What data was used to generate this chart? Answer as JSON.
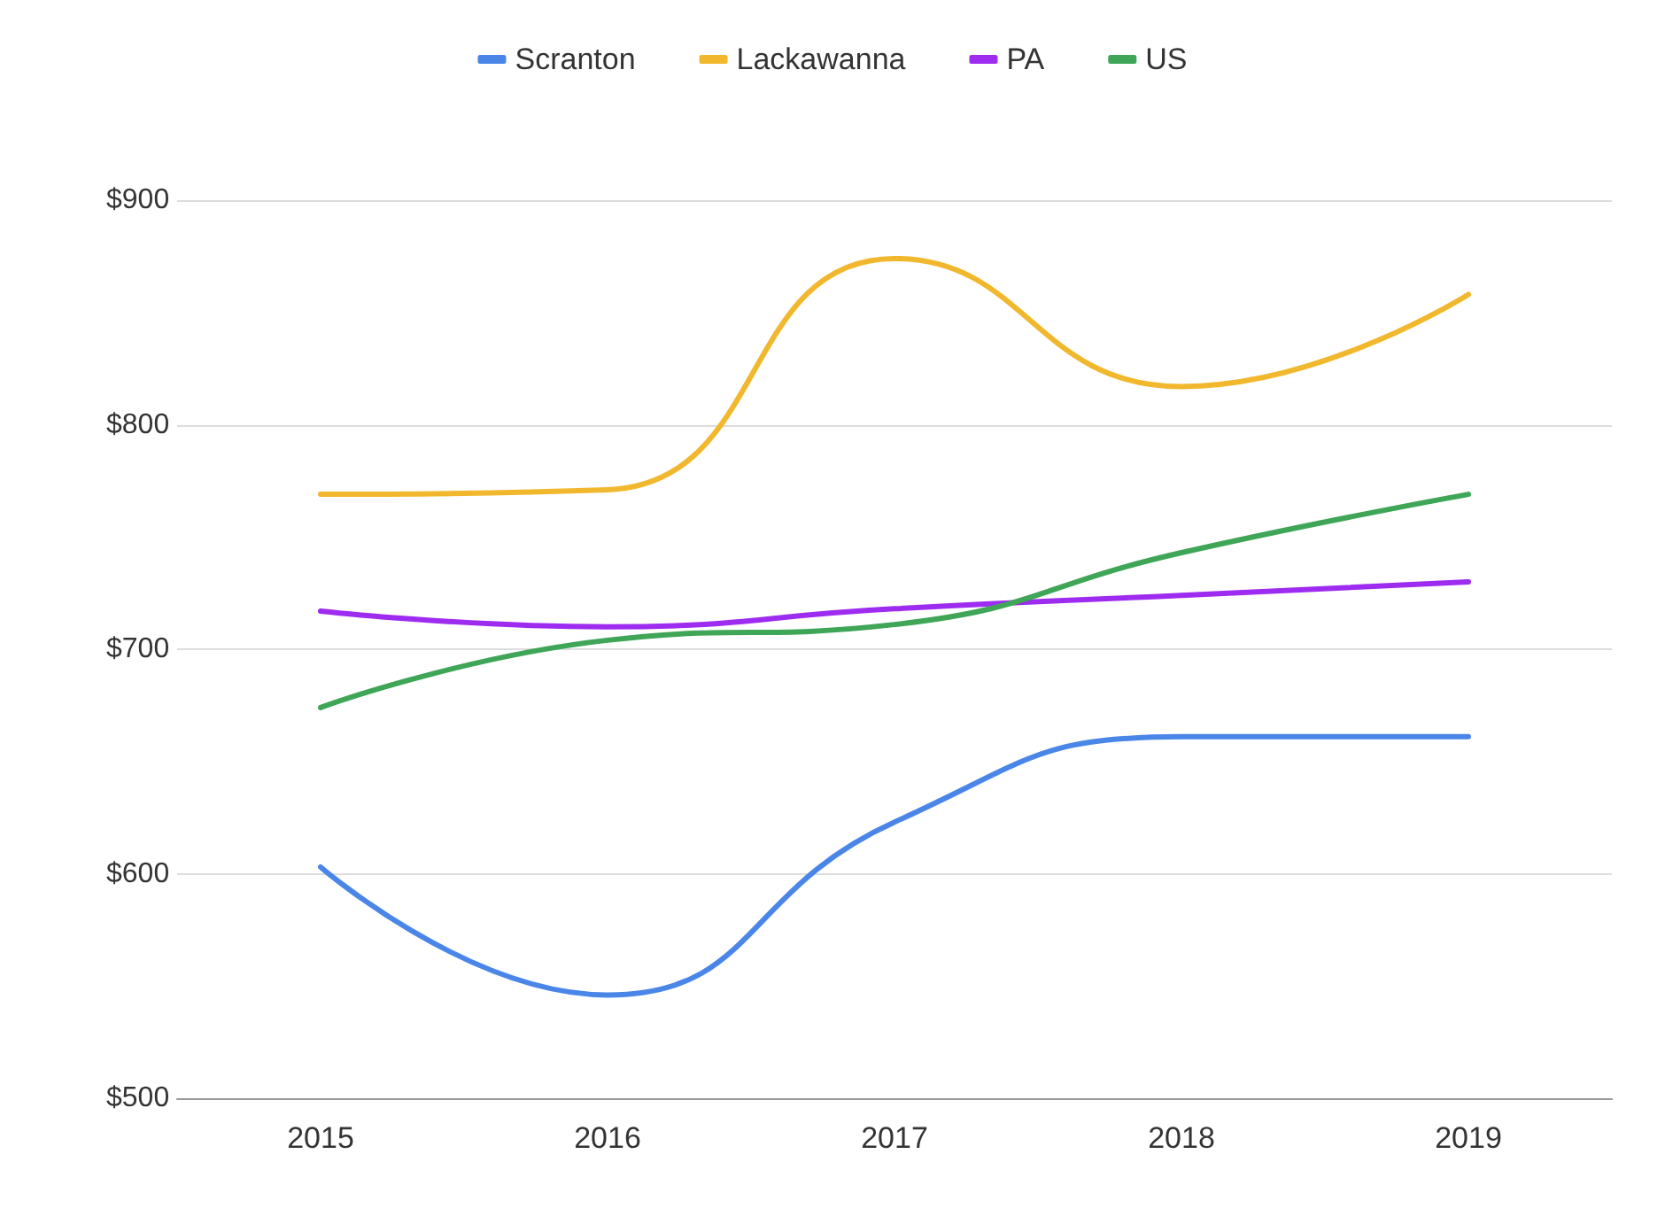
{
  "chart_data": {
    "type": "line",
    "categories": [
      "2015",
      "2016",
      "2017",
      "2018",
      "2019"
    ],
    "series": [
      {
        "name": "Scranton",
        "color": "#4a86e8",
        "values": [
          603,
          546,
          623,
          661,
          661
        ]
      },
      {
        "name": "Lackawanna",
        "color": "#f1b82d",
        "values": [
          769,
          771,
          874,
          817,
          858
        ]
      },
      {
        "name": "PA",
        "color": "#9d2bf0",
        "values": [
          717,
          710,
          718,
          724,
          730
        ]
      },
      {
        "name": "US",
        "color": "#3fa557",
        "values": [
          674,
          704,
          711,
          743,
          769
        ]
      }
    ],
    "ylim": [
      500,
      900
    ],
    "yticks": [
      {
        "value": 500,
        "label": "$500"
      },
      {
        "value": 600,
        "label": "$600"
      },
      {
        "value": 700,
        "label": "$700"
      },
      {
        "value": 800,
        "label": "$800"
      },
      {
        "value": 900,
        "label": "$900"
      }
    ],
    "grid": "y",
    "legend": "top",
    "marker": "none",
    "line_style": "solid"
  }
}
